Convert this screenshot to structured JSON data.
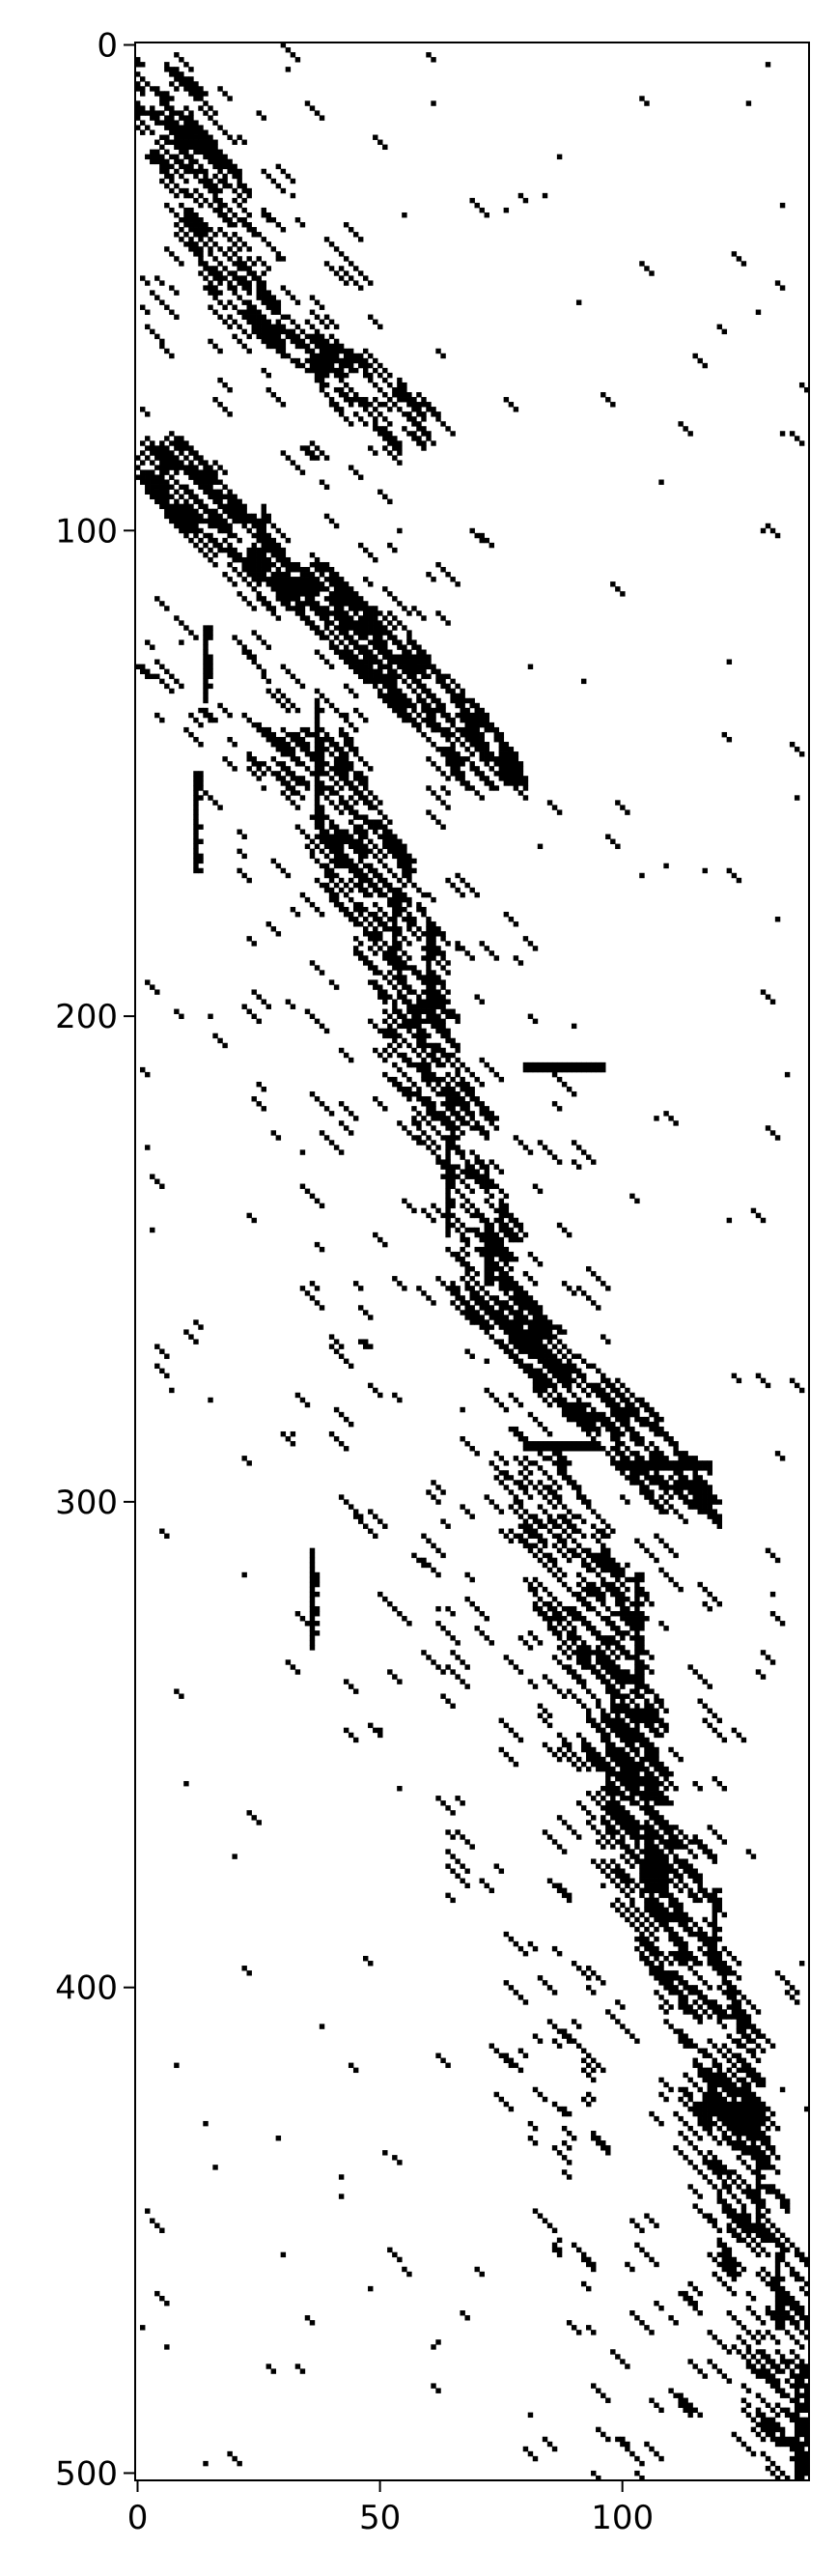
{
  "chart_data": {
    "type": "heatmap",
    "title": "",
    "xlabel": "",
    "ylabel": "",
    "n_cols": 139,
    "n_rows": 502,
    "xlim": [
      -0.5,
      138.5
    ],
    "ylim": [
      501.5,
      -0.5
    ],
    "x_ticks": [
      0,
      50,
      100
    ],
    "y_ticks": [
      0,
      100,
      200,
      300,
      400,
      500
    ],
    "colormap": {
      "zero": "#ffffff",
      "one": "#000000"
    },
    "grid": false,
    "legend": "none",
    "pattern": "sparse binary matrix; nonzero entries (1) form short diagonal streaks concentrated along a band from the top-left toward the bottom-right",
    "dense_segments": [
      {
        "row_start": 0,
        "row_end": 60,
        "col_start": 0,
        "col_end": 25,
        "slope": 0.45
      },
      {
        "row_start": 55,
        "row_end": 80,
        "col_start": 30,
        "col_end": 60,
        "slope": 1.1
      },
      {
        "row_start": 80,
        "row_end": 115,
        "col_start": 0,
        "col_end": 35,
        "slope": 0.9
      },
      {
        "row_start": 105,
        "row_end": 150,
        "col_start": 30,
        "col_end": 75,
        "slope": 1.0
      },
      {
        "row_start": 140,
        "row_end": 200,
        "col_start": 33,
        "col_end": 60,
        "slope": 0.45
      },
      {
        "row_start": 200,
        "row_end": 255,
        "col_start": 55,
        "col_end": 75,
        "slope": 0.35
      },
      {
        "row_start": 255,
        "row_end": 300,
        "col_start": 70,
        "col_end": 115,
        "slope": 1.0
      },
      {
        "row_start": 290,
        "row_end": 380,
        "col_start": 80,
        "col_end": 105,
        "slope": 0.35
      },
      {
        "row_start": 350,
        "row_end": 430,
        "col_start": 95,
        "col_end": 125,
        "slope": 0.4
      },
      {
        "row_start": 420,
        "row_end": 501,
        "col_start": 118,
        "col_end": 138,
        "slope": 0.25
      }
    ],
    "vertical_streaks": [
      {
        "col": 12,
        "row_start": 150,
        "row_end": 170
      },
      {
        "col": 14,
        "row_start": 120,
        "row_end": 135
      },
      {
        "col": 26,
        "row_start": 95,
        "row_end": 110
      },
      {
        "col": 36,
        "row_start": 310,
        "row_end": 330
      },
      {
        "col": 37,
        "row_start": 135,
        "row_end": 160
      },
      {
        "col": 53,
        "row_start": 175,
        "row_end": 190
      },
      {
        "col": 60,
        "row_start": 180,
        "row_end": 200
      },
      {
        "col": 64,
        "row_start": 225,
        "row_end": 245
      },
      {
        "col": 72,
        "row_start": 245,
        "row_end": 255
      },
      {
        "col": 103,
        "row_start": 315,
        "row_end": 340
      },
      {
        "col": 119,
        "row_start": 380,
        "row_end": 395
      },
      {
        "col": 128,
        "row_start": 435,
        "row_end": 448
      },
      {
        "col": 132,
        "row_start": 455,
        "row_end": 470
      },
      {
        "col": 136,
        "row_start": 480,
        "row_end": 501
      }
    ],
    "horizontal_streaks": [
      {
        "row": 210,
        "col_start": 80,
        "col_end": 96
      },
      {
        "row": 292,
        "col_start": 100,
        "col_end": 118
      },
      {
        "row": 288,
        "col_start": 80,
        "col_end": 95
      }
    ]
  }
}
